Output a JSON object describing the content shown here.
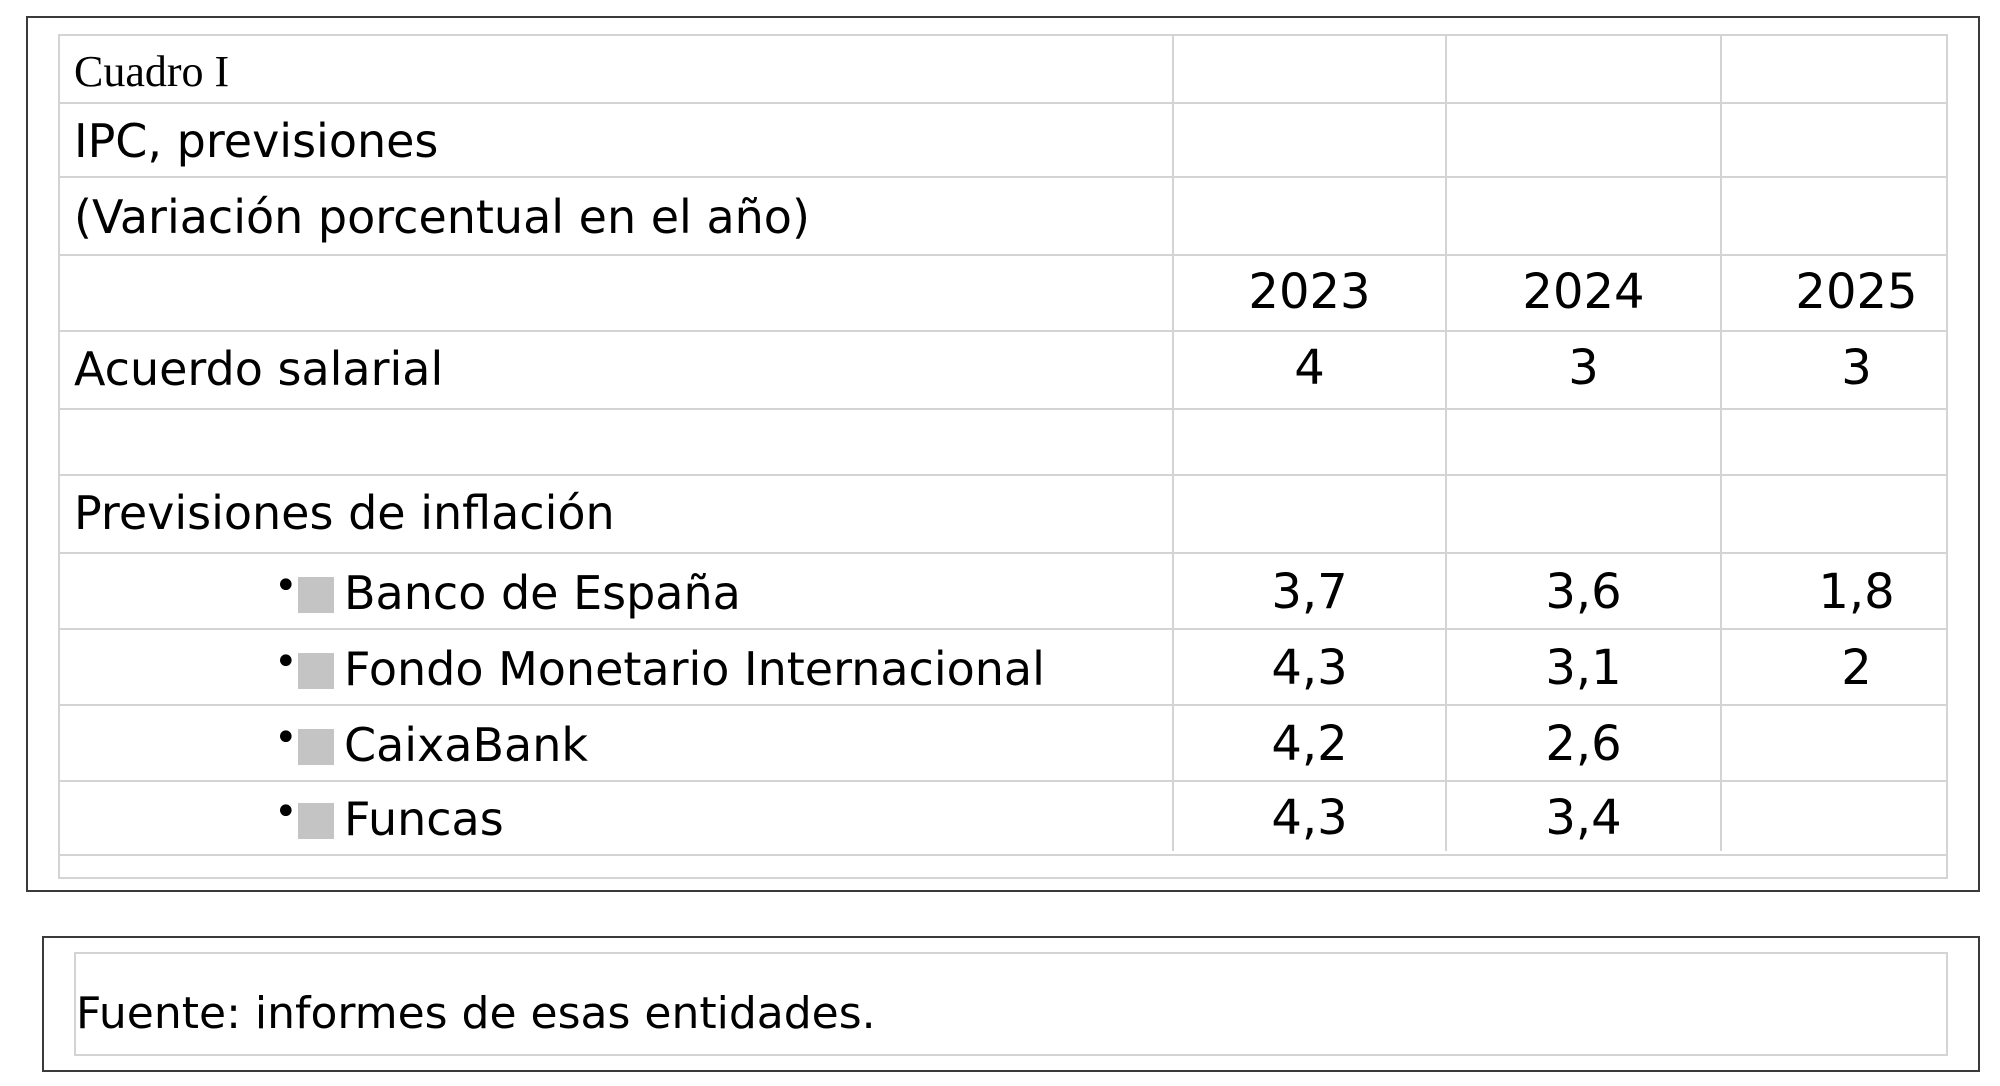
{
  "table": {
    "caption": "Cuadro I",
    "title": "IPC, previsiones",
    "subtitle": "(Variación porcentual en el año)",
    "years": [
      "2023",
      "2024",
      "2025"
    ],
    "salary_agreement": {
      "label": "Acuerdo salarial",
      "values": [
        "4",
        "3",
        "3"
      ]
    },
    "forecasts_heading": "Previsiones de inflación",
    "bullet_glyph": "•",
    "forecasts": [
      {
        "entity": "Banco de España",
        "values": [
          "3,7",
          "3,6",
          "1,8"
        ]
      },
      {
        "entity": "Fondo Monetario Internacional",
        "values": [
          "4,3",
          "3,1",
          "2"
        ]
      },
      {
        "entity": "CaixaBank",
        "values": [
          "4,2",
          "2,6",
          ""
        ]
      },
      {
        "entity": "Funcas",
        "values": [
          "4,3",
          "3,4",
          ""
        ]
      }
    ]
  },
  "source_note": "Fuente: informes de esas entidades.",
  "colors": {
    "grid": "#d4d4d4",
    "frame": "#3a3a3a",
    "bullet_square": "#c4c4c4"
  }
}
